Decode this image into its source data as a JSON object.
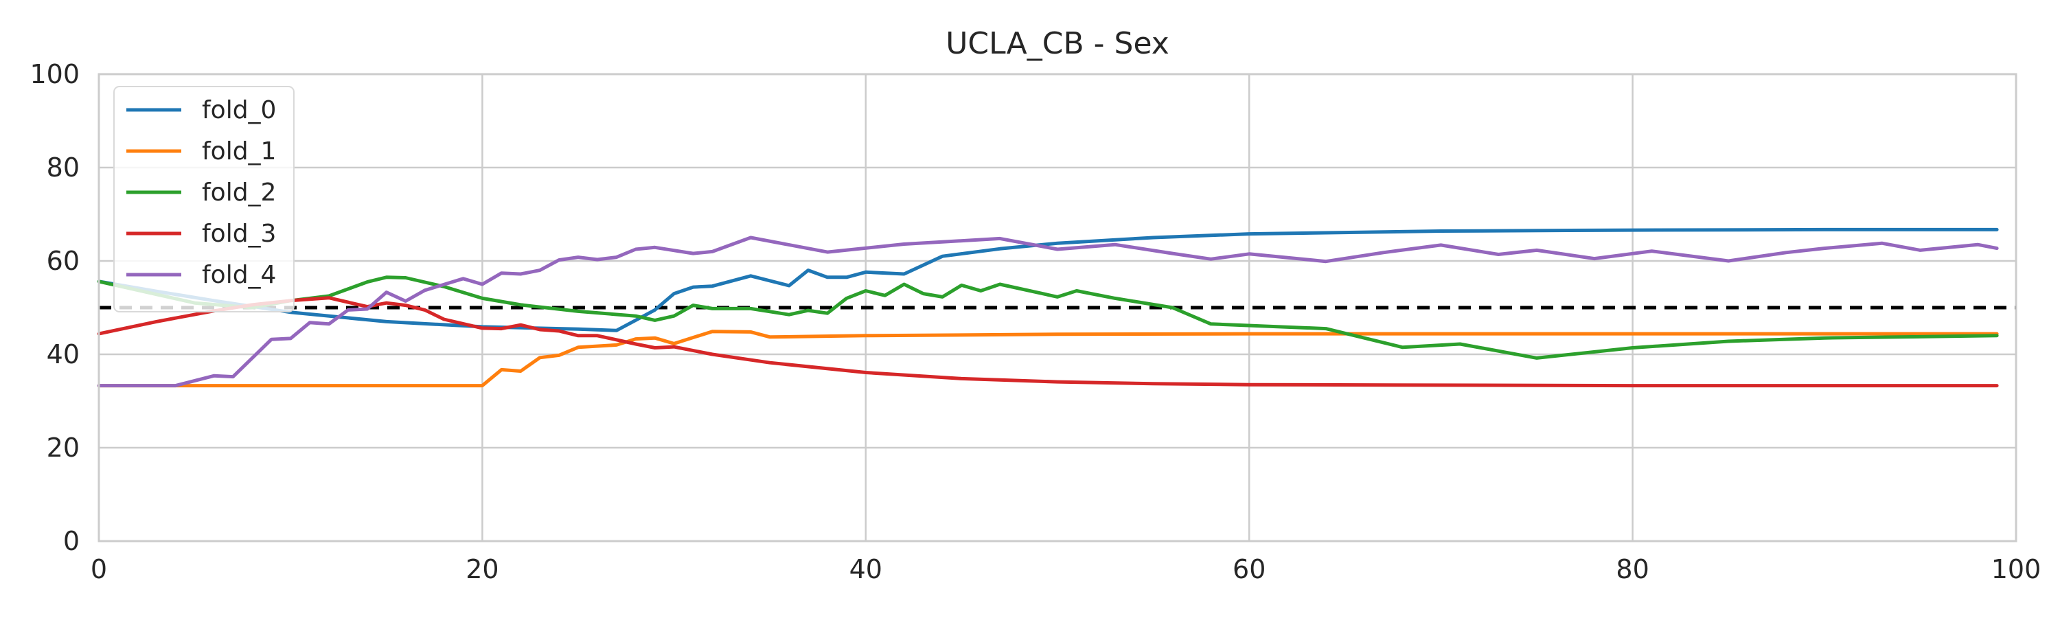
{
  "chart_data": {
    "type": "line",
    "title": "UCLA_CB - Sex",
    "xlabel": "",
    "ylabel": "",
    "xlim": [
      0,
      100
    ],
    "ylim": [
      0,
      100
    ],
    "x_ticks": [
      0,
      20,
      40,
      60,
      80,
      100
    ],
    "y_ticks": [
      0,
      20,
      40,
      60,
      80,
      100
    ],
    "grid": true,
    "legend_position": "top-left",
    "reference_line": {
      "y": 50,
      "style": "dashed",
      "color": "#000000"
    },
    "series": [
      {
        "name": "fold_0",
        "color": "#1f77b4",
        "points": [
          [
            0,
            55.6
          ],
          [
            3,
            53.5
          ],
          [
            6,
            51.5
          ],
          [
            10,
            49
          ],
          [
            15,
            47
          ],
          [
            20,
            45.9
          ],
          [
            25,
            45.4
          ],
          [
            27,
            45.1
          ],
          [
            29,
            49.5
          ],
          [
            30,
            53
          ],
          [
            31,
            54.4
          ],
          [
            32,
            54.6
          ],
          [
            34,
            56.8
          ],
          [
            36,
            54.7
          ],
          [
            37,
            58
          ],
          [
            38,
            56.5
          ],
          [
            39,
            56.5
          ],
          [
            40,
            57.6
          ],
          [
            42,
            57.2
          ],
          [
            44,
            61
          ],
          [
            47,
            62.6
          ],
          [
            50,
            63.8
          ],
          [
            55,
            65
          ],
          [
            60,
            65.8
          ],
          [
            70,
            66.4
          ],
          [
            80,
            66.6
          ],
          [
            90,
            66.7
          ],
          [
            99,
            66.7
          ]
        ]
      },
      {
        "name": "fold_1",
        "color": "#ff7f0e",
        "points": [
          [
            0,
            33.3
          ],
          [
            20,
            33.3
          ],
          [
            21,
            36.7
          ],
          [
            22,
            36.4
          ],
          [
            23,
            39.3
          ],
          [
            24,
            39.8
          ],
          [
            25,
            41.5
          ],
          [
            27,
            42
          ],
          [
            28,
            43.3
          ],
          [
            29,
            43.5
          ],
          [
            30,
            42.3
          ],
          [
            31,
            43.6
          ],
          [
            32,
            44.9
          ],
          [
            34,
            44.8
          ],
          [
            35,
            43.7
          ],
          [
            40,
            44
          ],
          [
            50,
            44.3
          ],
          [
            60,
            44.4
          ],
          [
            70,
            44.4
          ],
          [
            80,
            44.4
          ],
          [
            99,
            44.4
          ]
        ]
      },
      {
        "name": "fold_2",
        "color": "#2ca02c",
        "points": [
          [
            0,
            55.6
          ],
          [
            5,
            51
          ],
          [
            8,
            50
          ],
          [
            10,
            51.5
          ],
          [
            12,
            52.5
          ],
          [
            14,
            55.5
          ],
          [
            15,
            56.5
          ],
          [
            16,
            56.4
          ],
          [
            18,
            54.5
          ],
          [
            20,
            52
          ],
          [
            22,
            50.6
          ],
          [
            25,
            49.2
          ],
          [
            28,
            48.2
          ],
          [
            29,
            47.3
          ],
          [
            30,
            48.2
          ],
          [
            31,
            50.5
          ],
          [
            32,
            49.8
          ],
          [
            34,
            49.8
          ],
          [
            36,
            48.5
          ],
          [
            37,
            49.4
          ],
          [
            38,
            48.8
          ],
          [
            39,
            52
          ],
          [
            40,
            53.6
          ],
          [
            41,
            52.6
          ],
          [
            42,
            55
          ],
          [
            43,
            53
          ],
          [
            44,
            52.3
          ],
          [
            45,
            54.8
          ],
          [
            46,
            53.6
          ],
          [
            47,
            55
          ],
          [
            50,
            52.3
          ],
          [
            51,
            53.6
          ],
          [
            53,
            52
          ],
          [
            56,
            50
          ],
          [
            58,
            46.5
          ],
          [
            64,
            45.5
          ],
          [
            68,
            41.5
          ],
          [
            71,
            42.2
          ],
          [
            75,
            39.2
          ],
          [
            80,
            41.4
          ],
          [
            85,
            42.8
          ],
          [
            90,
            43.5
          ],
          [
            99,
            44
          ]
        ]
      },
      {
        "name": "fold_3",
        "color": "#d62728",
        "points": [
          [
            0,
            44.4
          ],
          [
            3,
            47
          ],
          [
            6,
            49.3
          ],
          [
            8,
            50.6
          ],
          [
            10,
            51.5
          ],
          [
            12,
            52.1
          ],
          [
            14,
            50.2
          ],
          [
            15,
            51
          ],
          [
            16,
            50.5
          ],
          [
            17,
            49.5
          ],
          [
            18,
            47.5
          ],
          [
            20,
            45.6
          ],
          [
            21,
            45.5
          ],
          [
            22,
            46.3
          ],
          [
            23,
            45.3
          ],
          [
            24,
            45
          ],
          [
            25,
            44
          ],
          [
            26,
            44
          ],
          [
            28,
            42.2
          ],
          [
            29,
            41.4
          ],
          [
            30,
            41.6
          ],
          [
            32,
            40
          ],
          [
            35,
            38.2
          ],
          [
            40,
            36.1
          ],
          [
            45,
            34.8
          ],
          [
            50,
            34.1
          ],
          [
            55,
            33.7
          ],
          [
            60,
            33.5
          ],
          [
            70,
            33.4
          ],
          [
            80,
            33.3
          ],
          [
            99,
            33.3
          ]
        ]
      },
      {
        "name": "fold_4",
        "color": "#9467bd",
        "points": [
          [
            0,
            33.3
          ],
          [
            4,
            33.3
          ],
          [
            6,
            35.4
          ],
          [
            7,
            35.2
          ],
          [
            9,
            43.2
          ],
          [
            10,
            43.4
          ],
          [
            11,
            46.8
          ],
          [
            12,
            46.5
          ],
          [
            13,
            49.5
          ],
          [
            14,
            49.7
          ],
          [
            15,
            53.3
          ],
          [
            16,
            51.4
          ],
          [
            17,
            53.7
          ],
          [
            19,
            56.2
          ],
          [
            20,
            55
          ],
          [
            21,
            57.4
          ],
          [
            22,
            57.2
          ],
          [
            23,
            58
          ],
          [
            24,
            60.2
          ],
          [
            25,
            60.8
          ],
          [
            26,
            60.3
          ],
          [
            27,
            60.8
          ],
          [
            28,
            62.5
          ],
          [
            29,
            62.9
          ],
          [
            31,
            61.6
          ],
          [
            32,
            62
          ],
          [
            34,
            65
          ],
          [
            38,
            61.9
          ],
          [
            42,
            63.6
          ],
          [
            47,
            64.8
          ],
          [
            50,
            62.5
          ],
          [
            53,
            63.5
          ],
          [
            56,
            61.6
          ],
          [
            58,
            60.4
          ],
          [
            60,
            61.5
          ],
          [
            64,
            59.9
          ],
          [
            67,
            61.8
          ],
          [
            70,
            63.4
          ],
          [
            73,
            61.4
          ],
          [
            75,
            62.3
          ],
          [
            78,
            60.5
          ],
          [
            81,
            62.1
          ],
          [
            85,
            60
          ],
          [
            88,
            61.8
          ],
          [
            90,
            62.7
          ],
          [
            93,
            63.8
          ],
          [
            95,
            62.3
          ],
          [
            98,
            63.5
          ],
          [
            99,
            62.7
          ]
        ]
      }
    ]
  }
}
